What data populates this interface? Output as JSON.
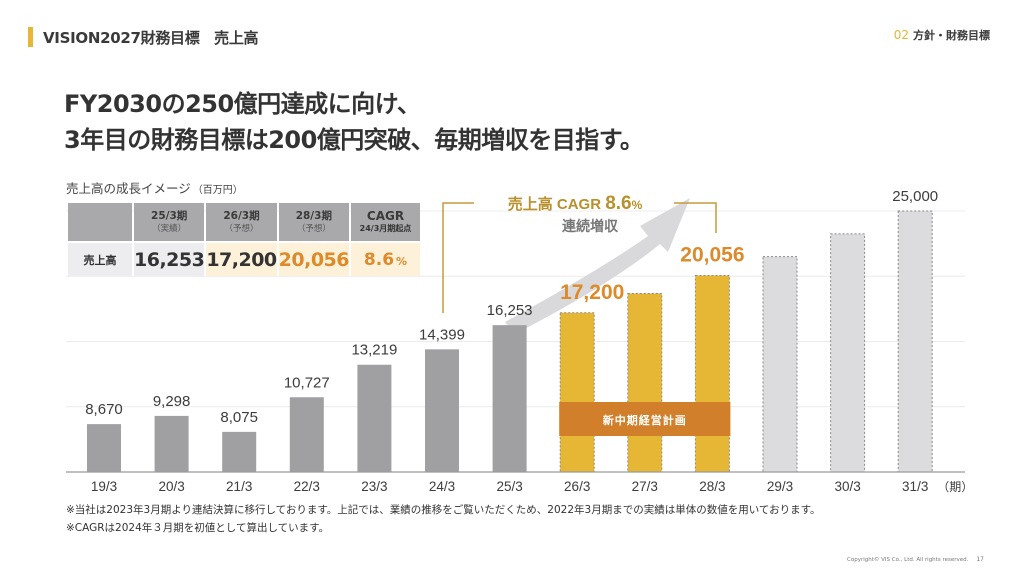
{
  "header": {
    "title": "VISION2027財務目標　売上高",
    "section_number": "02",
    "section_label": "方針・財務目標"
  },
  "headline": {
    "line1": "FY2030の250億円達成に向け、",
    "line2": "3年目の財務目標は200億円突破、毎期増収を目指す。"
  },
  "summary_table": {
    "caption": "売上高の成長イメージ",
    "unit": "（百万円）",
    "columns": [
      {
        "label": "25/3期",
        "sub": "（実績）"
      },
      {
        "label": "26/3期",
        "sub": "（予想）"
      },
      {
        "label": "28/3期",
        "sub": "（予想）"
      },
      {
        "label": "CAGR",
        "sub": "24/3月期起点"
      }
    ],
    "row_label": "売上高",
    "values": [
      "16,253",
      "17,200",
      "20,056",
      "8.6"
    ],
    "percent_sign": "%"
  },
  "colors": {
    "actual_bar": "#a0a0a3",
    "plan_bar": "#e6b735",
    "target_bar": "#dcdcde",
    "accent_orange": "#dd8a2a",
    "plan_band": "#d17f2b",
    "bracket": "#c59b3c"
  },
  "chart_data": {
    "type": "bar",
    "title": "",
    "xlabel": "",
    "ylabel": "",
    "x_unit_label": "（期）",
    "categories": [
      "19/3",
      "20/3",
      "21/3",
      "22/3",
      "23/3",
      "24/3",
      "25/3",
      "26/3",
      "27/3",
      "28/3",
      "29/3",
      "30/3",
      "31/3"
    ],
    "values": [
      8670,
      9298,
      8075,
      10727,
      13219,
      14399,
      16253,
      17200,
      18678,
      20056,
      21500,
      23250,
      25000
    ],
    "value_labels": [
      "8,670",
      "9,298",
      "8,075",
      "10,727",
      "13,219",
      "14,399",
      "16,253",
      "17,200",
      "",
      "20,056",
      "",
      "",
      "25,000"
    ],
    "bar_kind": [
      "actual",
      "actual",
      "actual",
      "actual",
      "actual",
      "actual",
      "actual",
      "plan",
      "plan",
      "plan",
      "target",
      "target",
      "target"
    ],
    "ylim": [
      5000,
      25000
    ],
    "gridlines": [
      10000,
      15000,
      20000,
      25000
    ],
    "grid": true,
    "legend": "none",
    "annotations": {
      "cagr_label": "売上高 CAGR",
      "cagr_value": "8.6",
      "cagr_pct": "%",
      "growth_label": "連続増収",
      "plan_band_label": "新中期経営計画",
      "plan_band_range": [
        "26/3",
        "28/3"
      ]
    }
  },
  "notes": [
    "※当社は2023年3月期より連結決算に移行しております。上記では、業績の推移をご覧いただくため、2022年3月期までの実績は単体の数値を用いております。",
    "※CAGRは2024年３月期を初値として算出しています。"
  ],
  "footer": {
    "copyright": "Copyright© VIS Co., Ltd. All rights reserved.",
    "page": "17"
  }
}
